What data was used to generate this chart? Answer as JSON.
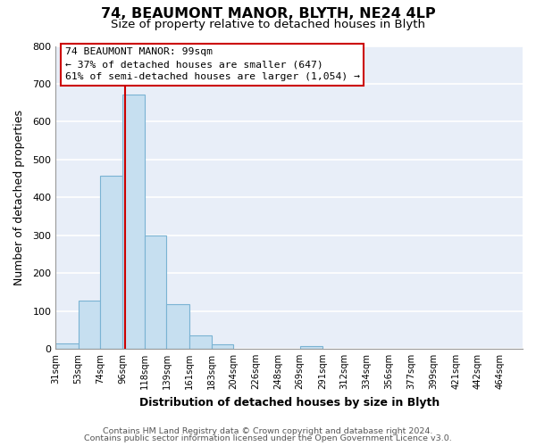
{
  "title": "74, BEAUMONT MANOR, BLYTH, NE24 4LP",
  "subtitle": "Size of property relative to detached houses in Blyth",
  "xlabel": "Distribution of detached houses by size in Blyth",
  "ylabel": "Number of detached properties",
  "bin_labels": [
    "31sqm",
    "53sqm",
    "74sqm",
    "96sqm",
    "118sqm",
    "139sqm",
    "161sqm",
    "183sqm",
    "204sqm",
    "226sqm",
    "248sqm",
    "269sqm",
    "291sqm",
    "312sqm",
    "334sqm",
    "356sqm",
    "377sqm",
    "399sqm",
    "421sqm",
    "442sqm",
    "464sqm"
  ],
  "bar_heights": [
    15,
    127,
    457,
    672,
    300,
    117,
    35,
    12,
    0,
    0,
    0,
    8,
    0,
    0,
    0,
    0,
    0,
    0,
    0,
    0,
    0
  ],
  "bar_color": "#c6dff0",
  "bar_edge_color": "#7ab3d3",
  "property_line_x": 99,
  "property_line_color": "#cc0000",
  "annotation_title": "74 BEAUMONT MANOR: 99sqm",
  "annotation_line1": "← 37% of detached houses are smaller (647)",
  "annotation_line2": "61% of semi-detached houses are larger (1,054) →",
  "annotation_box_facecolor": "#ffffff",
  "annotation_box_edgecolor": "#cc0000",
  "ylim": [
    0,
    800
  ],
  "yticks": [
    0,
    100,
    200,
    300,
    400,
    500,
    600,
    700,
    800
  ],
  "footer1": "Contains HM Land Registry data © Crown copyright and database right 2024.",
  "footer2": "Contains public sector information licensed under the Open Government Licence v3.0.",
  "background_color": "#ffffff",
  "plot_bg_color": "#e8eef8",
  "grid_color": "#ffffff",
  "bin_edges": [
    31,
    53,
    74,
    96,
    118,
    139,
    161,
    183,
    204,
    226,
    248,
    269,
    291,
    312,
    334,
    356,
    377,
    399,
    421,
    442,
    464,
    486
  ]
}
